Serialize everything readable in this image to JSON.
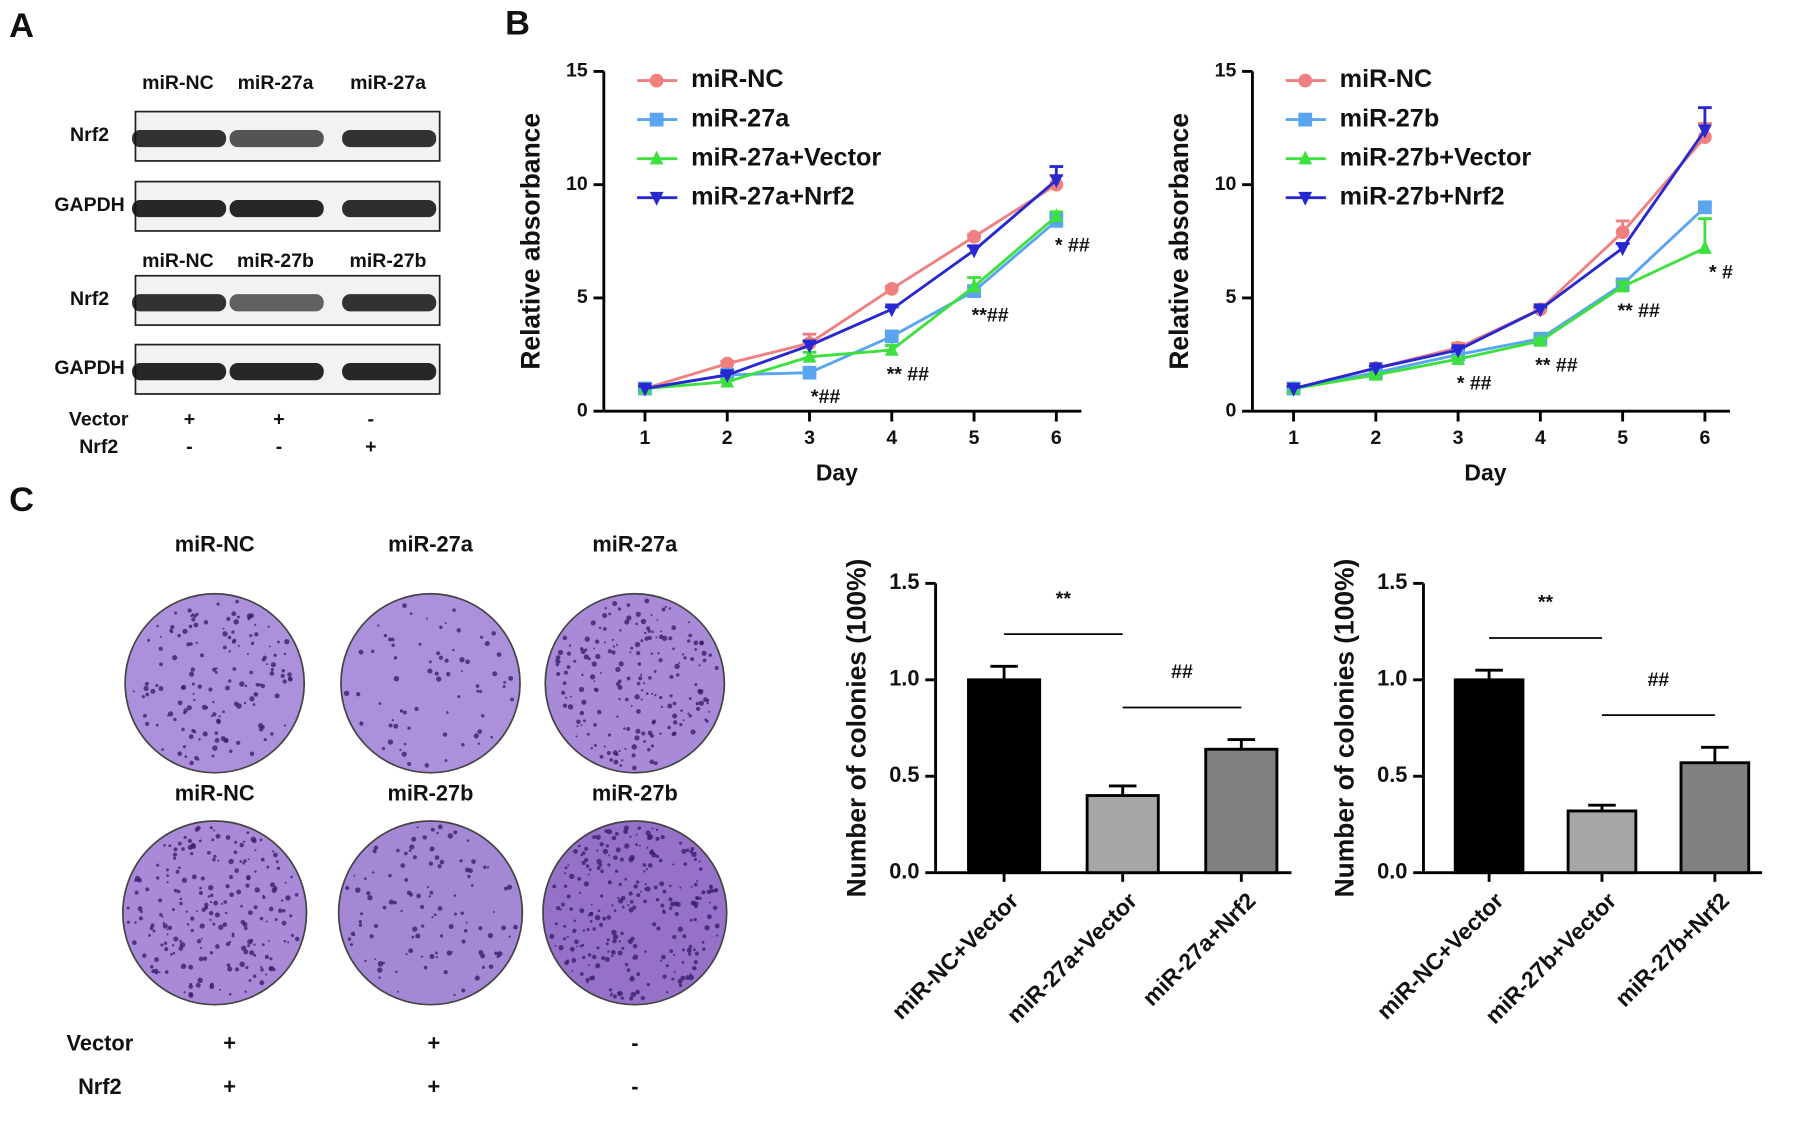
{
  "panel_labels": [
    "A",
    "B",
    "C"
  ],
  "western_blot": {
    "blots": [
      {
        "lanes": [
          "miR-NC",
          "miR-27a",
          "miR-27a"
        ],
        "rows": [
          "Nrf2",
          "GAPDH"
        ]
      },
      {
        "lanes": [
          "miR-NC",
          "miR-27b",
          "miR-27b"
        ],
        "rows": [
          "Nrf2",
          "GAPDH"
        ]
      }
    ],
    "conditions": [
      {
        "name": "Vector",
        "marks": [
          "+",
          "+",
          "-"
        ]
      },
      {
        "name": "Nrf2",
        "marks": [
          "-",
          "-",
          "+"
        ]
      }
    ]
  },
  "colony_plates": {
    "rows": [
      [
        "miR-NC",
        "miR-27a",
        "miR-27a"
      ],
      [
        "miR-NC",
        "miR-27b",
        "miR-27b"
      ]
    ],
    "conditions": [
      {
        "name": "Vector",
        "marks": [
          "+",
          "+",
          "-"
        ]
      },
      {
        "name": "Nrf2",
        "marks": [
          "+",
          "+",
          "-"
        ]
      }
    ]
  },
  "chart_data": [
    {
      "type": "line",
      "xlabel": "Day",
      "ylabel": "Relative absorbance",
      "x": [
        1,
        2,
        3,
        4,
        5,
        6
      ],
      "xlim": [
        0.5,
        6.5
      ],
      "xticks": [
        1,
        2,
        3,
        4,
        5,
        6
      ],
      "ylim": [
        0,
        15
      ],
      "yticks": [
        0,
        5,
        10,
        15
      ],
      "legend": "upper left",
      "series": [
        {
          "name": "miR-NC",
          "color": "#f08080",
          "marker": "circle",
          "values": [
            1,
            2.1,
            3.0,
            5.4,
            7.7,
            10.0
          ],
          "errors": [
            0.1,
            0.1,
            0.4,
            0.1,
            0.1,
            0.4
          ]
        },
        {
          "name": "miR-27a",
          "color": "#5aa5f0",
          "marker": "square",
          "values": [
            1,
            1.6,
            1.7,
            3.3,
            5.3,
            8.4
          ],
          "errors": [
            0.1,
            0.1,
            0.1,
            0.2,
            0.2,
            0.3
          ]
        },
        {
          "name": "miR-27a+Vector",
          "color": "#3ee03e",
          "marker": "triangle-up",
          "values": [
            1,
            1.3,
            2.4,
            2.7,
            5.5,
            8.6
          ],
          "errors": [
            0.1,
            0.1,
            0.2,
            0.2,
            0.4,
            0.2
          ]
        },
        {
          "name": "miR-27a+Nrf2",
          "color": "#2828d0",
          "marker": "triangle-down",
          "values": [
            1,
            1.6,
            2.9,
            4.5,
            7.1,
            10.2
          ],
          "errors": [
            0.1,
            0.1,
            0.2,
            0.1,
            0.2,
            0.6
          ]
        }
      ],
      "annotations": [
        null,
        null,
        "*##",
        "** ##",
        "**##",
        "* ##"
      ]
    },
    {
      "type": "line",
      "xlabel": "Day",
      "ylabel": "Relative absorbance",
      "x": [
        1,
        2,
        3,
        4,
        5,
        6
      ],
      "xlim": [
        0.5,
        6.5
      ],
      "xticks": [
        1,
        2,
        3,
        4,
        5,
        6
      ],
      "ylim": [
        0,
        15
      ],
      "yticks": [
        0,
        5,
        10,
        15
      ],
      "legend": "upper left",
      "series": [
        {
          "name": "miR-NC",
          "color": "#f08080",
          "marker": "circle",
          "values": [
            1,
            1.9,
            2.8,
            4.5,
            7.9,
            12.1
          ],
          "errors": [
            0.1,
            0.1,
            0.2,
            0.2,
            0.5,
            0.6
          ]
        },
        {
          "name": "miR-27b",
          "color": "#5aa5f0",
          "marker": "square",
          "values": [
            1,
            1.7,
            2.5,
            3.2,
            5.6,
            9.0
          ],
          "errors": [
            0.1,
            0.1,
            0.1,
            0.1,
            0.2,
            0.2
          ]
        },
        {
          "name": "miR-27b+Vector",
          "color": "#3ee03e",
          "marker": "triangle-up",
          "values": [
            1,
            1.6,
            2.3,
            3.1,
            5.5,
            7.2
          ],
          "errors": [
            0.1,
            0.1,
            0.1,
            0.1,
            0.2,
            1.3
          ]
        },
        {
          "name": "miR-27b+Nrf2",
          "color": "#2828d0",
          "marker": "triangle-down",
          "values": [
            1,
            1.9,
            2.7,
            4.5,
            7.2,
            12.4
          ],
          "errors": [
            0.1,
            0.1,
            0.1,
            0.1,
            0.2,
            1.0
          ]
        }
      ],
      "annotations": [
        null,
        null,
        "* ##",
        "** ##",
        "** ##",
        "* #"
      ]
    },
    {
      "type": "bar",
      "ylabel": "Number of colonies (100%)",
      "categories": [
        "miR-NC+Vector",
        "miR-27a+Vector",
        "miR-27a+Nrf2"
      ],
      "values": [
        1.0,
        0.4,
        0.64
      ],
      "errors": [
        0.07,
        0.05,
        0.05
      ],
      "colors": [
        "#000000",
        "#a6a6a6",
        "#808080"
      ],
      "ylim": [
        0,
        1.5
      ],
      "yticks": [
        {
          "value": 0,
          "label": "0.0"
        },
        {
          "value": 0.5,
          "label": "0.5"
        },
        {
          "value": 1,
          "label": "1.0"
        },
        {
          "value": 1.5,
          "label": "1.5"
        }
      ],
      "significance": [
        {
          "text": "**",
          "from": 0,
          "to": 1
        },
        {
          "text": "##",
          "from": 1,
          "to": 2
        }
      ]
    },
    {
      "type": "bar",
      "ylabel": "Number of colonies (100%)",
      "categories": [
        "miR-NC+Vector",
        "miR-27b+Vector",
        "miR-27b+Nrf2"
      ],
      "values": [
        1.0,
        0.32,
        0.57
      ],
      "errors": [
        0.05,
        0.03,
        0.08
      ],
      "colors": [
        "#000000",
        "#a6a6a6",
        "#808080"
      ],
      "ylim": [
        0,
        1.5
      ],
      "yticks": [
        {
          "value": 0,
          "label": "0.0"
        },
        {
          "value": 0.5,
          "label": "0.5"
        },
        {
          "value": 1,
          "label": "1.0"
        },
        {
          "value": 1.5,
          "label": "1.5"
        }
      ],
      "significance": [
        {
          "text": "**",
          "from": 0,
          "to": 1
        },
        {
          "text": "##",
          "from": 1,
          "to": 2
        }
      ]
    }
  ]
}
